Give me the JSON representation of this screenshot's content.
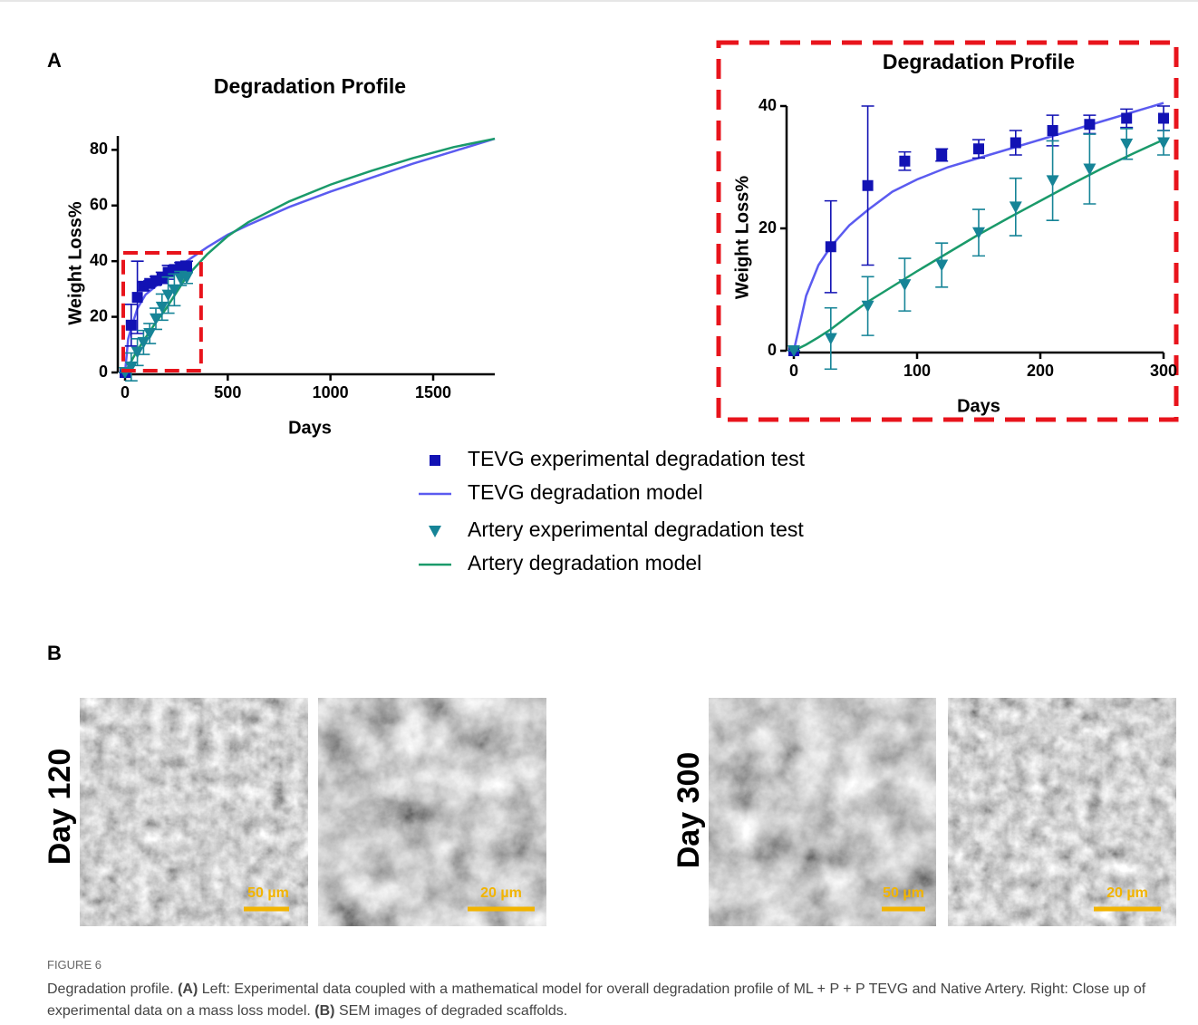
{
  "panel_a_label": "A",
  "panel_b_label": "B",
  "chart_data": [
    {
      "type": "line",
      "title": "Degradation Profile",
      "x_label": "Days",
      "y_label": "Weight Loss%",
      "xlim": [
        0,
        1800
      ],
      "ylim": [
        0,
        85
      ],
      "xticks": [
        0,
        500,
        1000,
        1500
      ],
      "yticks": [
        0,
        20,
        40,
        60,
        80
      ],
      "highlight": {
        "x": [
          0,
          370
        ],
        "y": [
          0,
          43
        ],
        "color": "#e8141c"
      },
      "series": [
        {
          "name": "TEVG experimental degradation test",
          "type": "scatter",
          "marker": "square",
          "color": "#1212b4",
          "x": [
            0,
            30,
            60,
            90,
            120,
            150,
            180,
            210,
            240,
            270,
            300
          ],
          "values": [
            0,
            17,
            27,
            31,
            32,
            33,
            34,
            36,
            37,
            38,
            38
          ],
          "errors": [
            0,
            7.5,
            13,
            1.5,
            1,
            1.5,
            2,
            2.5,
            1.5,
            1.5,
            2
          ]
        },
        {
          "name": "TEVG degradation model",
          "type": "line",
          "color": "#5b5bf0",
          "x": [
            0,
            15,
            30,
            60,
            100,
            150,
            200,
            300,
            400,
            500,
            600,
            800,
            1000,
            1200,
            1400,
            1600,
            1800
          ],
          "values": [
            0,
            12,
            16,
            23,
            28,
            31,
            34,
            40,
            45,
            49.5,
            53,
            59.5,
            65,
            70,
            75,
            79.5,
            84
          ]
        },
        {
          "name": "Artery experimental degradation test",
          "type": "scatter",
          "marker": "triangle",
          "color": "#168497",
          "x": [
            0,
            30,
            60,
            90,
            120,
            150,
            180,
            210,
            240,
            270,
            300
          ],
          "values": [
            0,
            2,
            7.3,
            10.8,
            14,
            19.3,
            23.5,
            27.8,
            29.7,
            33.8,
            34
          ],
          "errors": [
            0,
            5,
            4.8,
            4.3,
            3.6,
            3.8,
            4.7,
            6.5,
            5.7,
            2.5,
            2
          ]
        },
        {
          "name": "Artery degradation model",
          "type": "line",
          "color": "#1a9a6a",
          "x": [
            0,
            15,
            30,
            60,
            100,
            150,
            200,
            300,
            400,
            500,
            600,
            800,
            1000,
            1200,
            1400,
            1600,
            1800
          ],
          "values": [
            0,
            2,
            4,
            8,
            12.5,
            18,
            23,
            34.5,
            42.5,
            49,
            54,
            61.5,
            67.5,
            72.5,
            77,
            81,
            84
          ]
        }
      ]
    },
    {
      "type": "line",
      "title": "Degradation Profile",
      "x_label": "Days",
      "y_label": "Weight Loss%",
      "xlim": [
        0,
        300
      ],
      "ylim": [
        0,
        40
      ],
      "xticks": [
        0,
        100,
        200,
        300
      ],
      "yticks": [
        0,
        20,
        40
      ],
      "frame_color": "#e8141c",
      "series": [
        {
          "type": "scatter",
          "marker": "square",
          "color": "#1212b4",
          "x": [
            0,
            30,
            60,
            90,
            120,
            150,
            180,
            210,
            240,
            270,
            300
          ],
          "values": [
            0,
            17,
            27,
            31,
            32,
            33,
            34,
            36,
            37,
            38,
            38
          ],
          "errors": [
            0,
            7.5,
            13,
            1.5,
            1,
            1.5,
            2,
            2.5,
            1.5,
            1.5,
            2
          ]
        },
        {
          "type": "line",
          "color": "#5b5bf0",
          "x": [
            0,
            10,
            20,
            30,
            45,
            60,
            80,
            100,
            125,
            150,
            175,
            200,
            225,
            250,
            275,
            300
          ],
          "values": [
            0,
            9,
            14,
            17,
            20.5,
            23,
            26,
            28,
            30,
            31.5,
            33,
            34.5,
            36,
            37.5,
            39,
            40.5
          ]
        },
        {
          "type": "scatter",
          "marker": "triangle",
          "color": "#168497",
          "x": [
            0,
            30,
            60,
            90,
            120,
            150,
            180,
            210,
            240,
            270,
            300
          ],
          "values": [
            0,
            2,
            7.3,
            10.8,
            14,
            19.3,
            23.5,
            27.8,
            29.7,
            33.8,
            34
          ],
          "errors": [
            0,
            5,
            4.8,
            4.3,
            3.6,
            3.8,
            4.7,
            6.5,
            5.7,
            2.5,
            2
          ]
        },
        {
          "type": "line",
          "color": "#1a9a6a",
          "x": [
            0,
            10,
            20,
            30,
            45,
            60,
            80,
            100,
            125,
            150,
            175,
            200,
            225,
            250,
            275,
            300
          ],
          "values": [
            0,
            1,
            2.2,
            3.5,
            5.8,
            8,
            10.5,
            13,
            16,
            19,
            21.8,
            24.5,
            27.2,
            29.8,
            32.2,
            34.5
          ]
        }
      ]
    }
  ],
  "sem_rows": [
    {
      "label": "Day 120",
      "scale_bars": [
        "50 µm",
        "20 µm"
      ]
    },
    {
      "label": "Day 300",
      "scale_bars": [
        "50 µm",
        "20 µm"
      ]
    }
  ],
  "caption": {
    "label": "FIGURE 6",
    "parts": [
      "Degradation profile.",
      "(A)",
      "Left: Experimental data coupled with a mathematical model for overall degradation profile of ML + P + P TEVG and Native Artery. Right: Close up of experimental data on a mass loss model.",
      "(B)",
      "SEM images of degraded scaffolds."
    ]
  }
}
